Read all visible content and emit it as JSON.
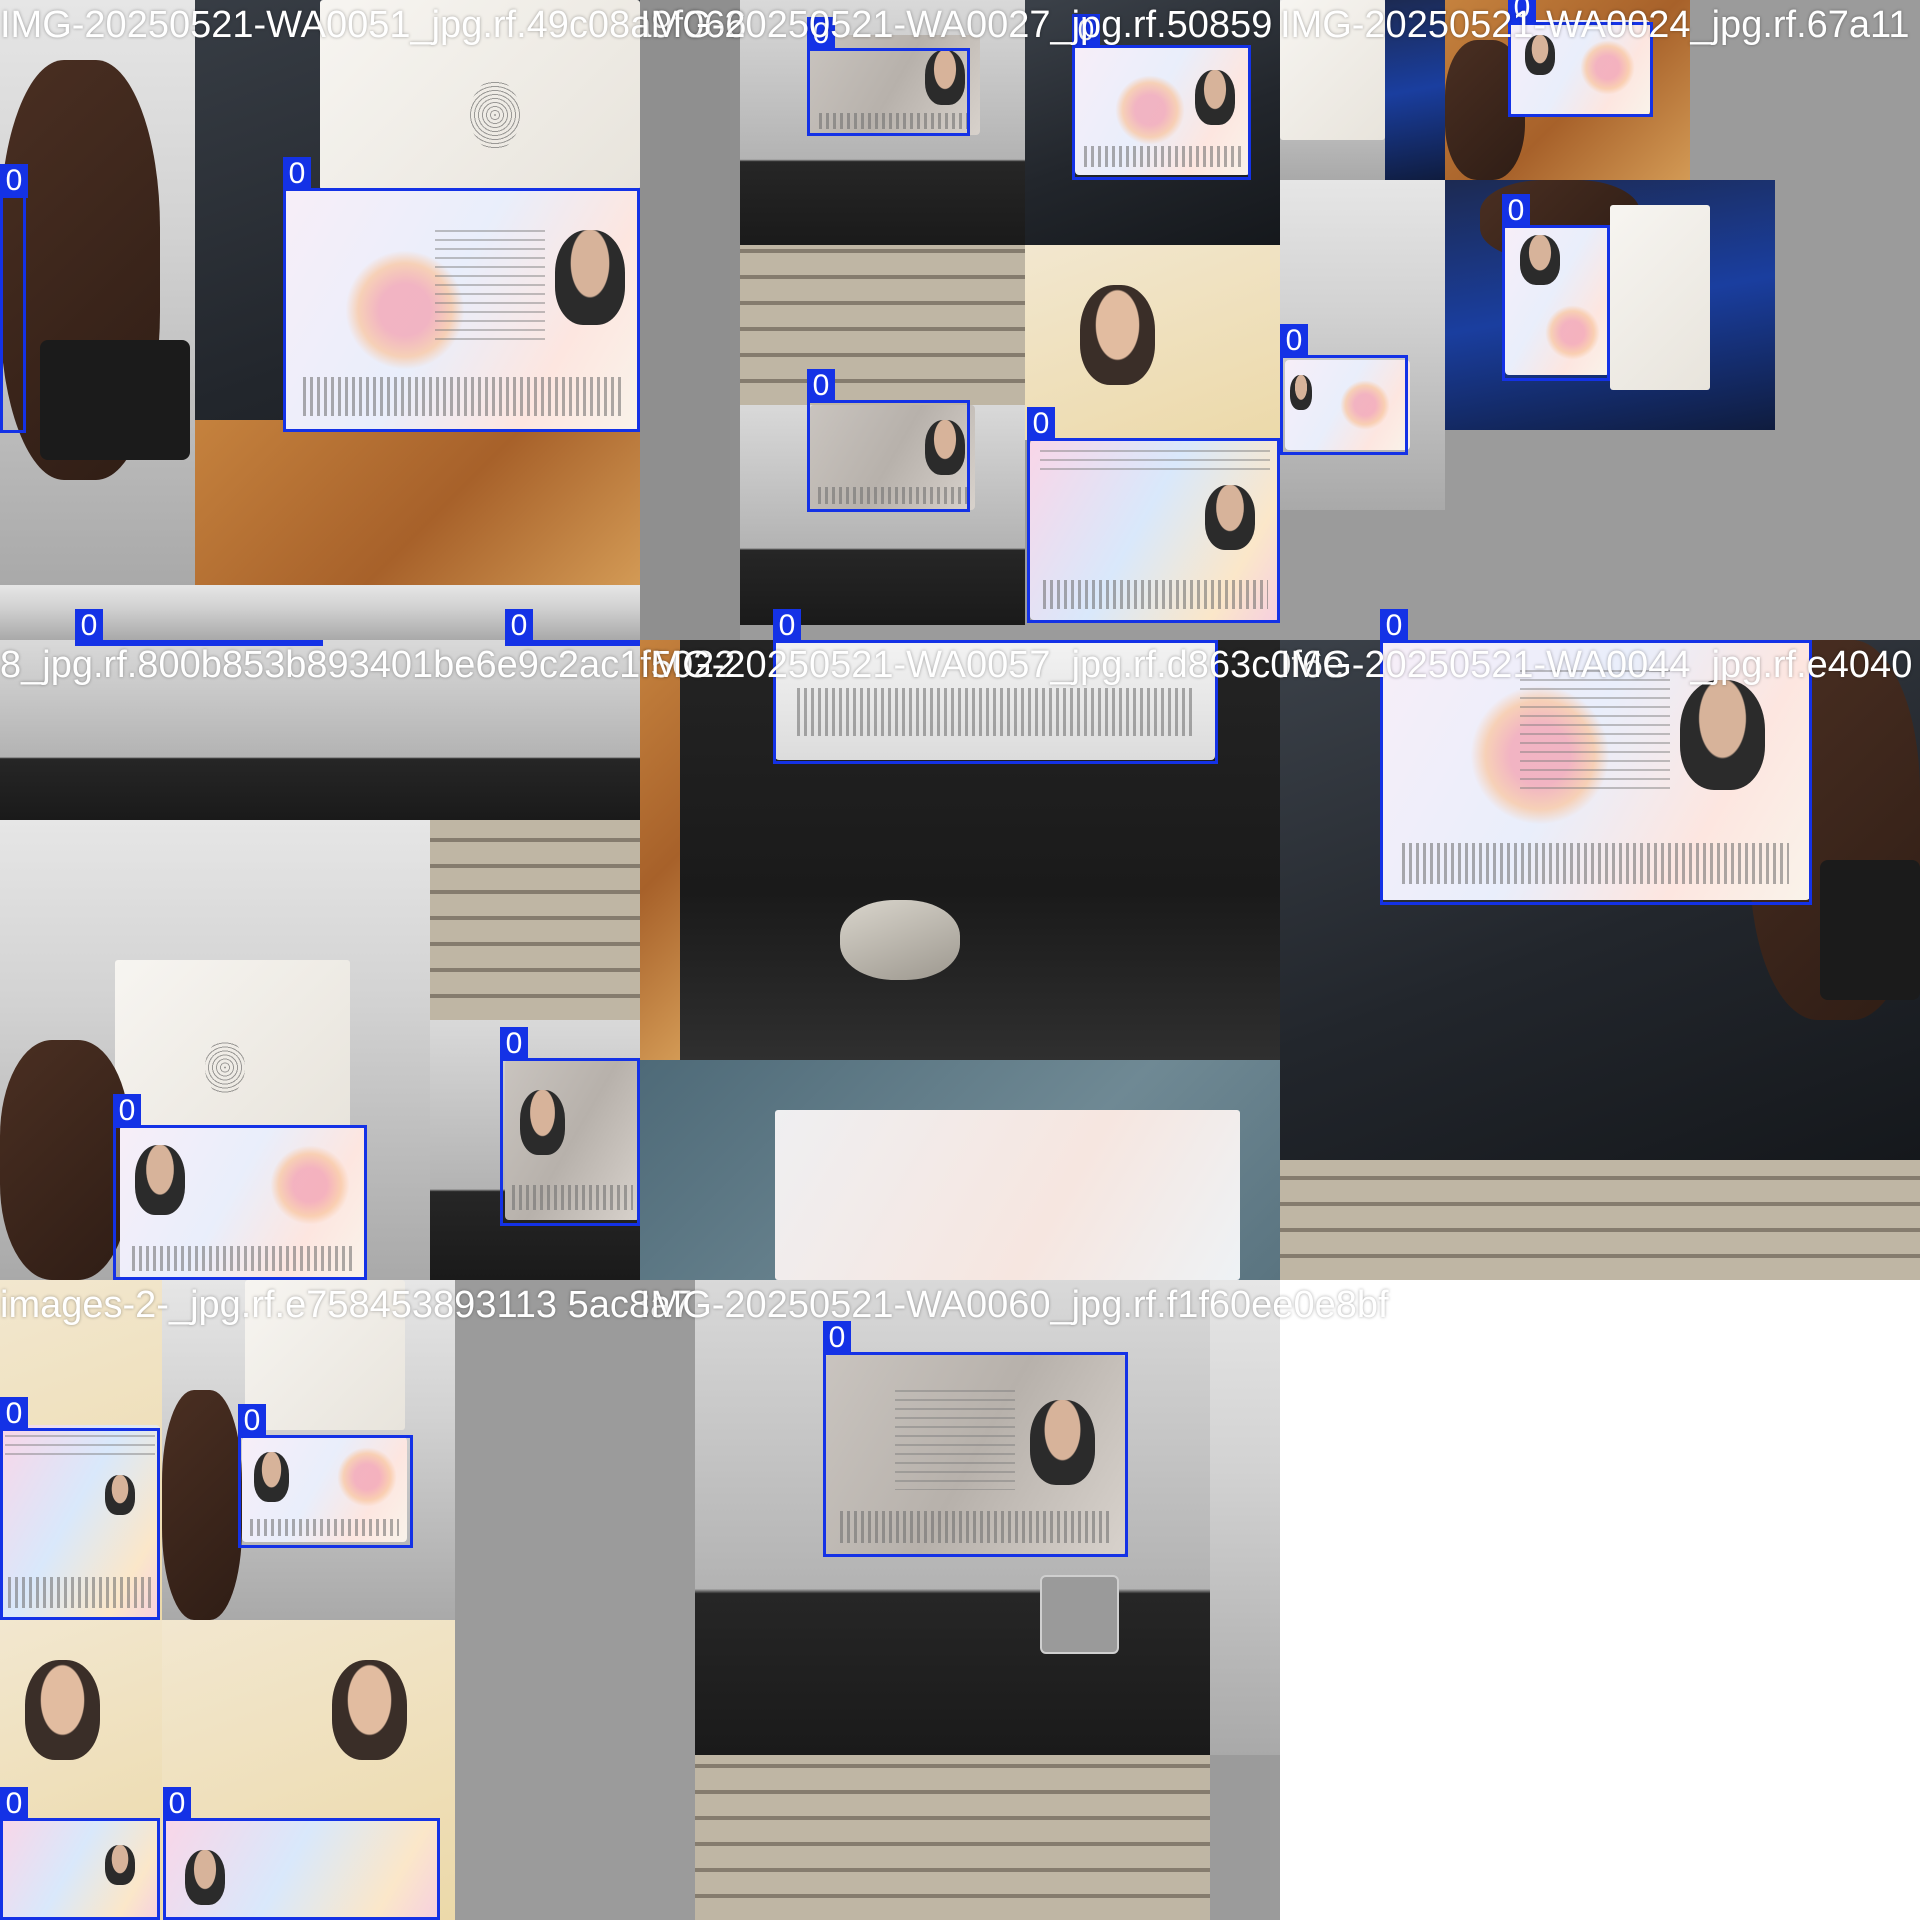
{
  "mosaic": {
    "tiles": [
      {
        "title": "IMG-20250521-WA0051_jpg.rf.49c08a9f066"
      },
      {
        "title": "IMG-20250521-WA0027_jpg.rf.50859"
      },
      {
        "title": "IMG-20250521-WA0024_jpg.rf.67a11"
      },
      {
        "title": "8_jpg.rf.800b853b893401be6e9c2ac1f5022"
      },
      {
        "title": "IMG-20250521-WA0057_jpg.rf.d863c0f6e"
      },
      {
        "title": "IMG-20250521-WA0044_jpg.rf.e4040"
      },
      {
        "title": "images-2-_jpg.rf.e758453893113 5ac8a7"
      },
      {
        "title": "IMG-20250521-WA0060_jpg.rf.f1f60ee0e8bf"
      }
    ],
    "box_label": "0"
  }
}
